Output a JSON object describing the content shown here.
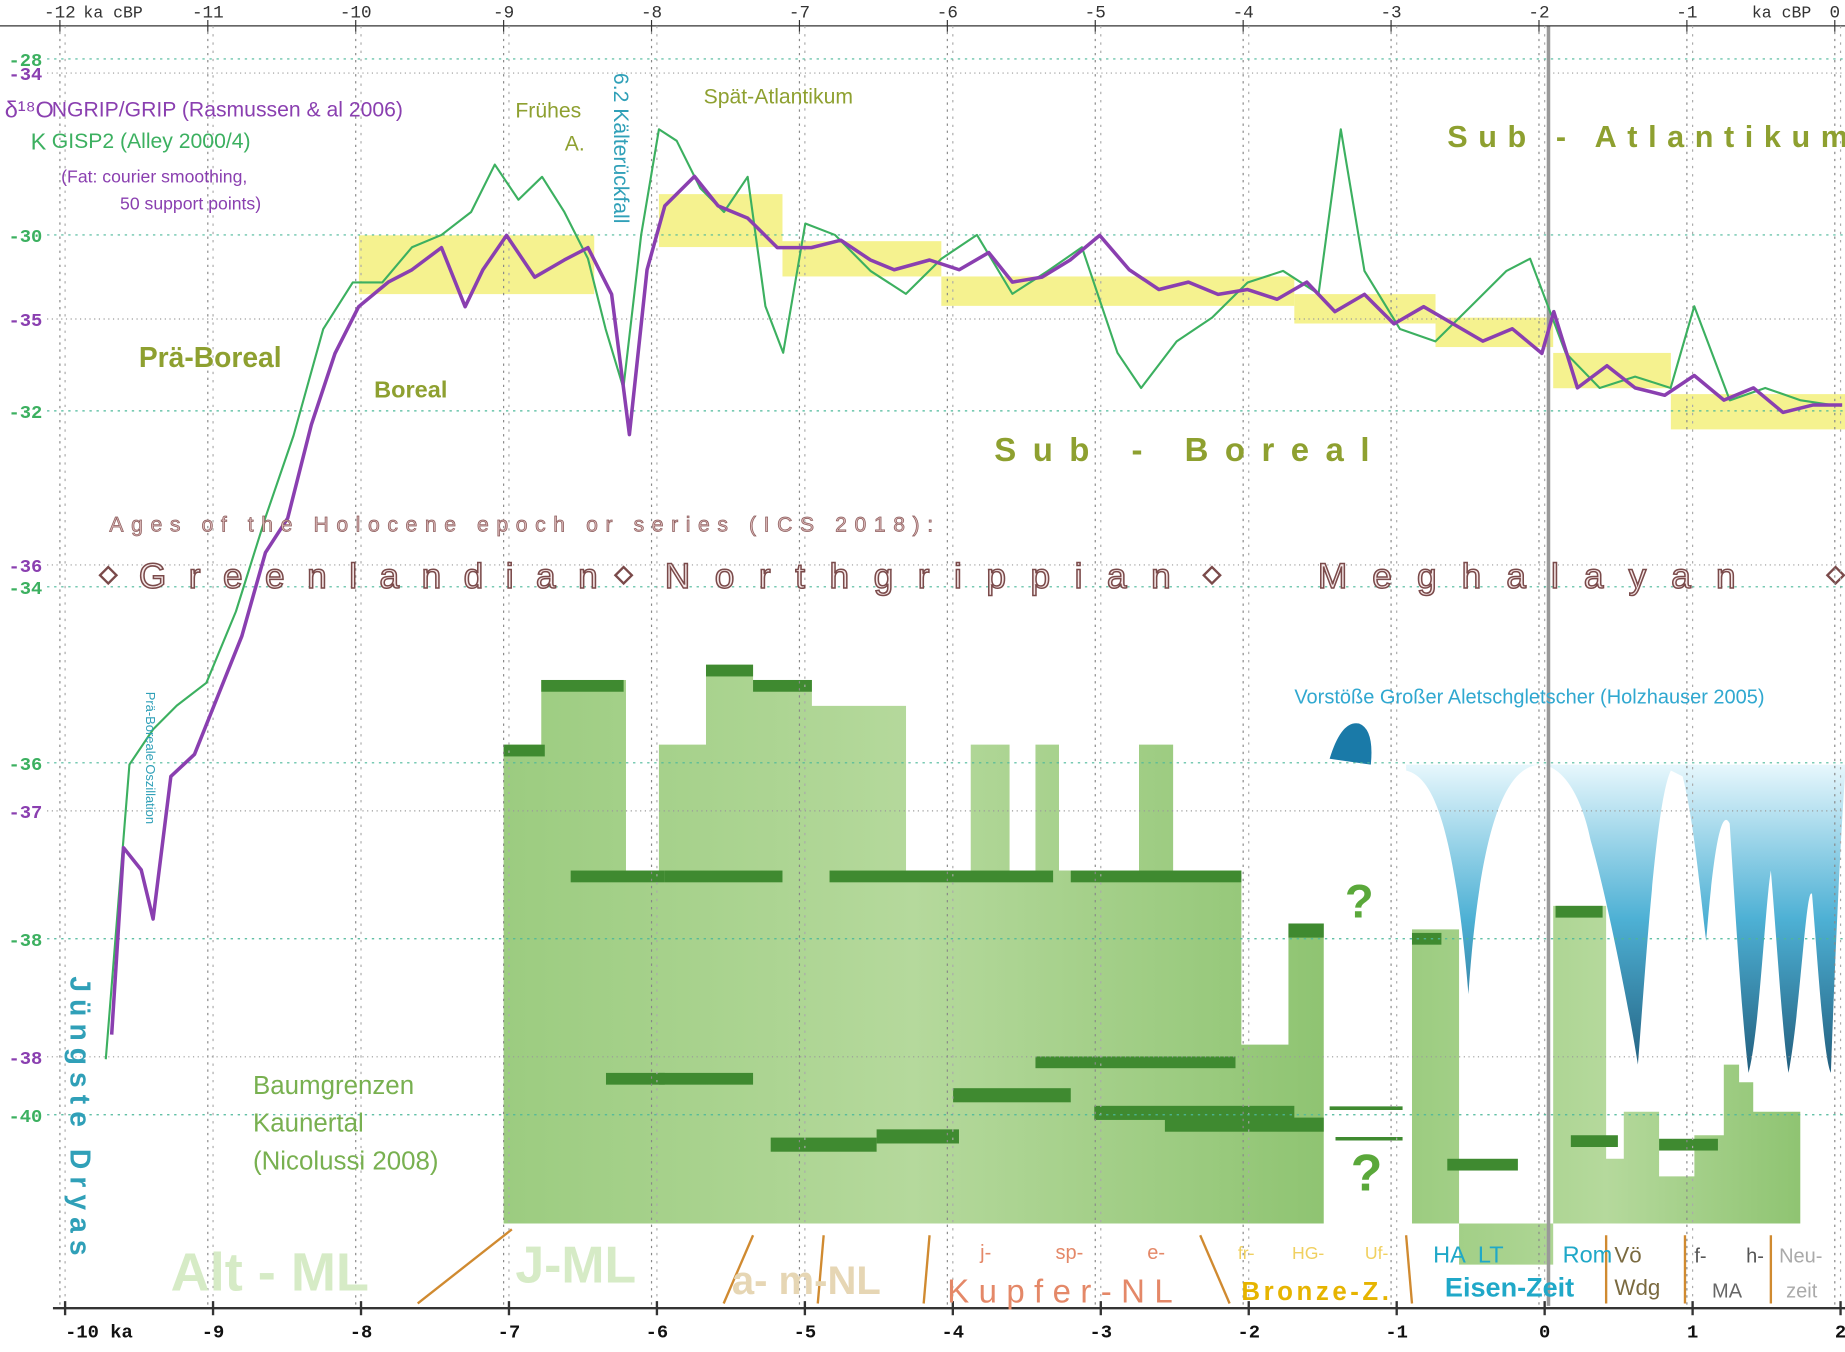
{
  "chart_data": {
    "type": "line",
    "x_unit": "ka cBP",
    "xlim": [
      -12.405,
      0.069
    ],
    "xticks": [
      -12,
      -11,
      -10,
      -9,
      -8,
      -7,
      -6,
      -5,
      -4,
      -3,
      -2,
      -1,
      0
    ],
    "x2lim": [
      -10.44,
      2.03
    ],
    "x2ticks": [
      {
        "value": -10,
        "label": "-10 ka"
      },
      -9,
      -8,
      -7,
      -6,
      -5,
      -4,
      -3,
      -2,
      -1,
      0,
      1,
      2
    ],
    "ylim": [
      -33.703,
      -39.18
    ],
    "yticks": [
      -34,
      -35,
      -36,
      -37,
      -38
    ],
    "y2lim": [
      -27.33,
      -42.64
    ],
    "y2ticks": [
      -28,
      -30,
      -32,
      -34,
      -36,
      -38,
      -40
    ],
    "y_label": "δ¹⁸O",
    "y2_label": "K",
    "grid": true,
    "series": [
      {
        "name": "GISP2 (Alley 2000/4)",
        "color": "#3cb060",
        "axis": "y2",
        "x": [
          -11.69,
          -11.53,
          -11.37,
          -11.21,
          -11.01,
          -10.81,
          -10.61,
          -10.42,
          -10.22,
          -10.02,
          -9.82,
          -9.62,
          -9.42,
          -9.22,
          -9.06,
          -8.9,
          -8.74,
          -8.59,
          -8.43,
          -8.31,
          -8.19,
          -8.07,
          -7.95,
          -7.83,
          -7.67,
          -7.51,
          -7.35,
          -7.23,
          -7.11,
          -6.96,
          -6.76,
          -6.52,
          -6.28,
          -6.04,
          -5.8,
          -5.56,
          -5.32,
          -5.09,
          -4.85,
          -4.69,
          -4.45,
          -4.21,
          -3.97,
          -3.73,
          -3.49,
          -3.34,
          -3.18,
          -2.94,
          -2.7,
          -2.46,
          -2.22,
          -2.06,
          -1.82,
          -1.59,
          -1.35,
          -1.11,
          -0.95,
          -0.71,
          -0.47,
          -0.23,
          0.01
        ],
        "values": [
          -39.37,
          -36.02,
          -35.62,
          -35.35,
          -35.09,
          -34.28,
          -33.21,
          -32.28,
          -31.07,
          -30.54,
          -30.54,
          -30.14,
          -30.0,
          -29.74,
          -29.2,
          -29.6,
          -29.34,
          -29.74,
          -30.27,
          -31.07,
          -31.74,
          -30.0,
          -28.8,
          -28.93,
          -29.47,
          -29.74,
          -29.34,
          -30.81,
          -31.34,
          -29.87,
          -30.0,
          -30.41,
          -30.67,
          -30.27,
          -30.0,
          -30.67,
          -30.41,
          -30.14,
          -31.34,
          -31.74,
          -31.21,
          -30.94,
          -30.54,
          -30.41,
          -30.67,
          -28.8,
          -30.41,
          -31.07,
          -31.21,
          -30.81,
          -30.41,
          -30.27,
          -31.34,
          -31.74,
          -31.61,
          -31.74,
          -30.81,
          -31.88,
          -31.74,
          -31.88,
          -31.94
        ]
      },
      {
        "name": "NGRIP/GRIP (Rasmussen & al 2006)",
        "color": "#8a3fb0",
        "x": [
          -11.65,
          -11.57,
          -11.45,
          -11.37,
          -11.25,
          -11.09,
          -10.93,
          -10.77,
          -10.61,
          -10.46,
          -10.3,
          -10.14,
          -9.98,
          -9.78,
          -9.62,
          -9.42,
          -9.26,
          -9.14,
          -8.98,
          -8.79,
          -8.59,
          -8.43,
          -8.27,
          -8.15,
          -8.03,
          -7.91,
          -7.71,
          -7.55,
          -7.35,
          -7.15,
          -6.92,
          -6.72,
          -6.52,
          -6.36,
          -6.12,
          -5.92,
          -5.72,
          -5.56,
          -5.36,
          -5.17,
          -4.97,
          -4.77,
          -4.57,
          -4.37,
          -4.17,
          -3.97,
          -3.77,
          -3.57,
          -3.38,
          -3.18,
          -2.98,
          -2.78,
          -2.58,
          -2.38,
          -2.18,
          -1.98,
          -1.9,
          -1.74,
          -1.54,
          -1.35,
          -1.15,
          -0.95,
          -0.75,
          -0.55,
          -0.35,
          -0.15,
          0.05
        ],
        "values": [
          -37.91,
          -37.15,
          -37.24,
          -37.44,
          -36.86,
          -36.77,
          -36.53,
          -36.29,
          -35.95,
          -35.81,
          -35.43,
          -35.14,
          -34.95,
          -34.85,
          -34.8,
          -34.71,
          -34.95,
          -34.8,
          -34.66,
          -34.83,
          -34.76,
          -34.71,
          -34.9,
          -35.47,
          -34.8,
          -34.54,
          -34.42,
          -34.54,
          -34.59,
          -34.71,
          -34.71,
          -34.68,
          -34.76,
          -34.8,
          -34.76,
          -34.8,
          -34.73,
          -34.85,
          -34.83,
          -34.76,
          -34.66,
          -34.8,
          -34.88,
          -34.85,
          -34.9,
          -34.88,
          -34.92,
          -34.85,
          -34.97,
          -34.9,
          -35.02,
          -34.95,
          -35.02,
          -35.09,
          -35.04,
          -35.14,
          -34.97,
          -35.28,
          -35.19,
          -35.28,
          -35.31,
          -35.23,
          -35.33,
          -35.28,
          -35.38,
          -35.35,
          -35.35
        ]
      }
    ],
    "note": [
      "(Fat: courier smoothing,",
      "50 support points)"
    ],
    "annotations": [
      "Frühes",
      "A.",
      "6.2 Kälterückfall",
      "Spät-Atlantikum",
      "Sub - Atlantikum",
      "Prä-Boreal",
      "Boreal",
      "Sub - Boreal",
      "Prä-Boreale Oszillation",
      "Jüngste Dryas",
      "?",
      "?"
    ],
    "ages_caption": "Ages of the Holocene epoch or series (ICS 2018):",
    "ages": [
      "Greenlandian",
      "Northgrippian",
      "Meghalayan"
    ],
    "glacier_label": "Vorstöße Großer Aletschgletscher (Holzhauser 2005)",
    "treeline_label": [
      "Baumgrenzen",
      "Kaunertal",
      "(Nicolussi 2008)"
    ],
    "cultures": [
      "Alt - ML",
      "J-ML",
      "a- m-NL",
      "j-",
      "sp-",
      "e-",
      "Kupfer-NL",
      "fr-",
      "HG-",
      "Uf-",
      "Bronze-Z.",
      "HA",
      "LT",
      "Rom",
      "Eisen-Zeit",
      "Vö",
      "Wdg",
      "f-",
      "h-",
      "MA",
      "Neu-",
      "zeit"
    ]
  }
}
